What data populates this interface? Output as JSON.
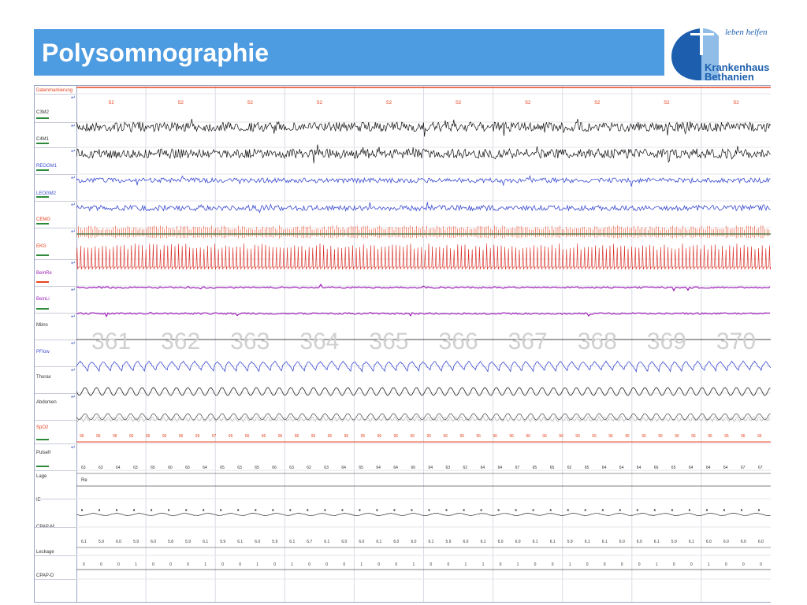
{
  "header": {
    "title": "Polysomnographie"
  },
  "logo": {
    "tagline": "leben helfen",
    "name_line1": "Krankenhaus",
    "name_line2": "Bethanien"
  },
  "psg": {
    "channels": [
      {
        "label": "Datenmarkierung",
        "color": "#e8431f"
      },
      {
        "label": "C3M2",
        "color": "#333333"
      },
      {
        "label": "C4M1",
        "color": "#333333"
      },
      {
        "label": "REOGM1",
        "color": "#3a4bd0"
      },
      {
        "label": "LEOGM2",
        "color": "#3a4bd0"
      },
      {
        "label": "CEMG",
        "color": "#e8431f"
      },
      {
        "label": "EKG",
        "color": "#e8431f"
      },
      {
        "label": "BeinRe",
        "color": "#9b1fb5"
      },
      {
        "label": "BeinLi",
        "color": "#9b1fb5"
      },
      {
        "label": "Mikro",
        "color": "#333333"
      },
      {
        "label": "PFlow",
        "color": "#3a4bd0"
      },
      {
        "label": "Thorax",
        "color": "#333333"
      },
      {
        "label": "Abdomen",
        "color": "#333333"
      },
      {
        "label": "SpO2",
        "color": "#e8431f"
      },
      {
        "label": "Pulsefr",
        "color": "#333333"
      },
      {
        "label": "Lage",
        "color": "#333333"
      },
      {
        "label": "IE",
        "color": "#333333"
      },
      {
        "label": "CPAP-M",
        "color": "#333333"
      },
      {
        "label": "Leckage",
        "color": "#333333"
      },
      {
        "label": "CPAP-D",
        "color": "#333333"
      }
    ],
    "stage_marks": [
      "S2",
      "S2",
      "S2",
      "S2",
      "S2",
      "S2",
      "S2",
      "S2",
      "S2",
      "S2"
    ],
    "epoch_numbers": [
      "361",
      "362",
      "363",
      "364",
      "365",
      "366",
      "367",
      "368",
      "369",
      "370"
    ],
    "spo2_values": [
      "96",
      "96",
      "96",
      "96",
      "96",
      "96",
      "96",
      "96",
      "97",
      "96",
      "96",
      "96",
      "96",
      "96",
      "96",
      "96",
      "96",
      "95",
      "96",
      "96",
      "96",
      "96",
      "96",
      "96",
      "96",
      "96",
      "96",
      "96",
      "96",
      "96",
      "96",
      "96",
      "96",
      "96",
      "96",
      "96",
      "96",
      "96",
      "96",
      "96",
      "96",
      "96"
    ],
    "pulse_values": [
      "63",
      "63",
      "64",
      "63",
      "65",
      "60",
      "60",
      "64",
      "65",
      "63",
      "65",
      "66",
      "63",
      "62",
      "63",
      "64",
      "65",
      "64",
      "64",
      "66",
      "64",
      "63",
      "62",
      "64",
      "64",
      "67",
      "65",
      "65",
      "62",
      "65",
      "64",
      "64",
      "64",
      "66",
      "65",
      "64",
      "64",
      "64",
      "67",
      "67"
    ],
    "position_value": "Re",
    "cpap_values": [
      "6.1",
      "5.9",
      "6.0",
      "5.9",
      "6.0",
      "5.8",
      "5.9",
      "6.1",
      "5.9",
      "6.1",
      "6.0",
      "5.9",
      "6.1",
      "5.7",
      "6.1",
      "6.0",
      "6.0",
      "6.1",
      "6.0",
      "6.0",
      "6.1",
      "5.9",
      "6.0",
      "6.1",
      "6.0",
      "6.0",
      "6.1",
      "6.1",
      "5.9",
      "6.1",
      "6.1",
      "6.0",
      "6.0",
      "6.1",
      "5.9",
      "6.1",
      "6.0",
      "6.0",
      "6.0",
      "6.0"
    ],
    "leakage_values": [
      "0",
      "0",
      "0",
      "1",
      "0",
      "0",
      "0",
      "1",
      "0",
      "0",
      "1",
      "0",
      "1",
      "0",
      "0",
      "0",
      "1",
      "0",
      "0",
      "1",
      "0",
      "0",
      "1",
      "1",
      "0",
      "1",
      "0",
      "0",
      "1",
      "0",
      "0",
      "0",
      "0",
      "1",
      "0",
      "0",
      "1",
      "0",
      "0",
      "0"
    ],
    "colors": {
      "title_bar": "#4d9be0",
      "logo_blue": "#1d5fae",
      "logo_light": "#8fbde8",
      "marker_line": "#e8431f",
      "grid": "#c9ccd8"
    }
  }
}
